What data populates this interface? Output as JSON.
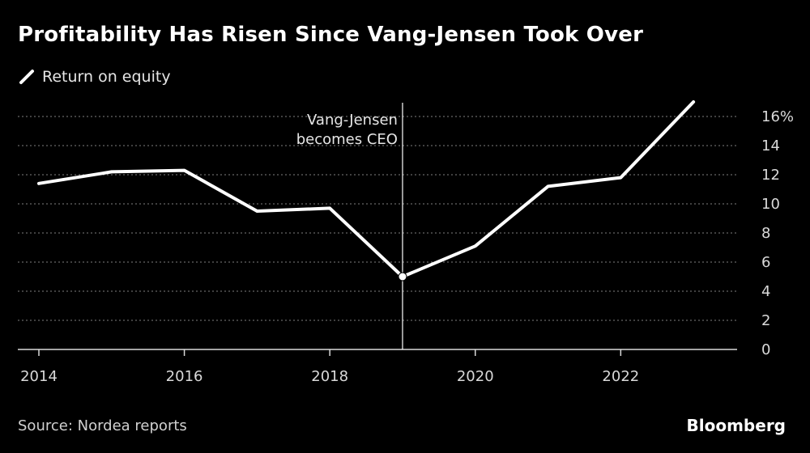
{
  "header": {
    "title": "Profitability Has Risen Since Vang-Jensen Took Over"
  },
  "legend": {
    "label": "Return on equity"
  },
  "footer": {
    "source": "Source: Nordea reports",
    "brand": "Bloomberg"
  },
  "colors": {
    "background": "#000000",
    "line": "#ffffff",
    "grid": "#808080"
  },
  "chart_data": {
    "type": "line",
    "title": "Profitability Has Risen Since Vang-Jensen Took Over",
    "xlabel": "",
    "ylabel": "",
    "xlim": [
      2014,
      2023.6
    ],
    "ylim": [
      0,
      16
    ],
    "grid": true,
    "y_axis_side": "right",
    "legend_position": "top-left",
    "x_ticks": [
      2014,
      2016,
      2018,
      2020,
      2022
    ],
    "x_tick_labels": [
      "2014",
      "2016",
      "2018",
      "2020",
      "2022"
    ],
    "y_ticks": [
      0,
      2,
      4,
      6,
      8,
      10,
      12,
      14,
      16
    ],
    "y_tick_labels": [
      "0",
      "2",
      "4",
      "6",
      "8",
      "10",
      "12",
      "14",
      "16%"
    ],
    "series": [
      {
        "name": "Return on equity",
        "x": [
          2014,
          2015,
          2016,
          2017,
          2018,
          2019,
          2020,
          2021,
          2022,
          2023
        ],
        "values": [
          11.4,
          12.2,
          12.3,
          9.5,
          9.7,
          5.0,
          7.1,
          11.2,
          11.8,
          17.0
        ]
      }
    ],
    "annotations": [
      {
        "x": 2019,
        "y": 5.0,
        "lines": [
          "Vang-Jensen",
          "becomes CEO"
        ]
      }
    ]
  }
}
